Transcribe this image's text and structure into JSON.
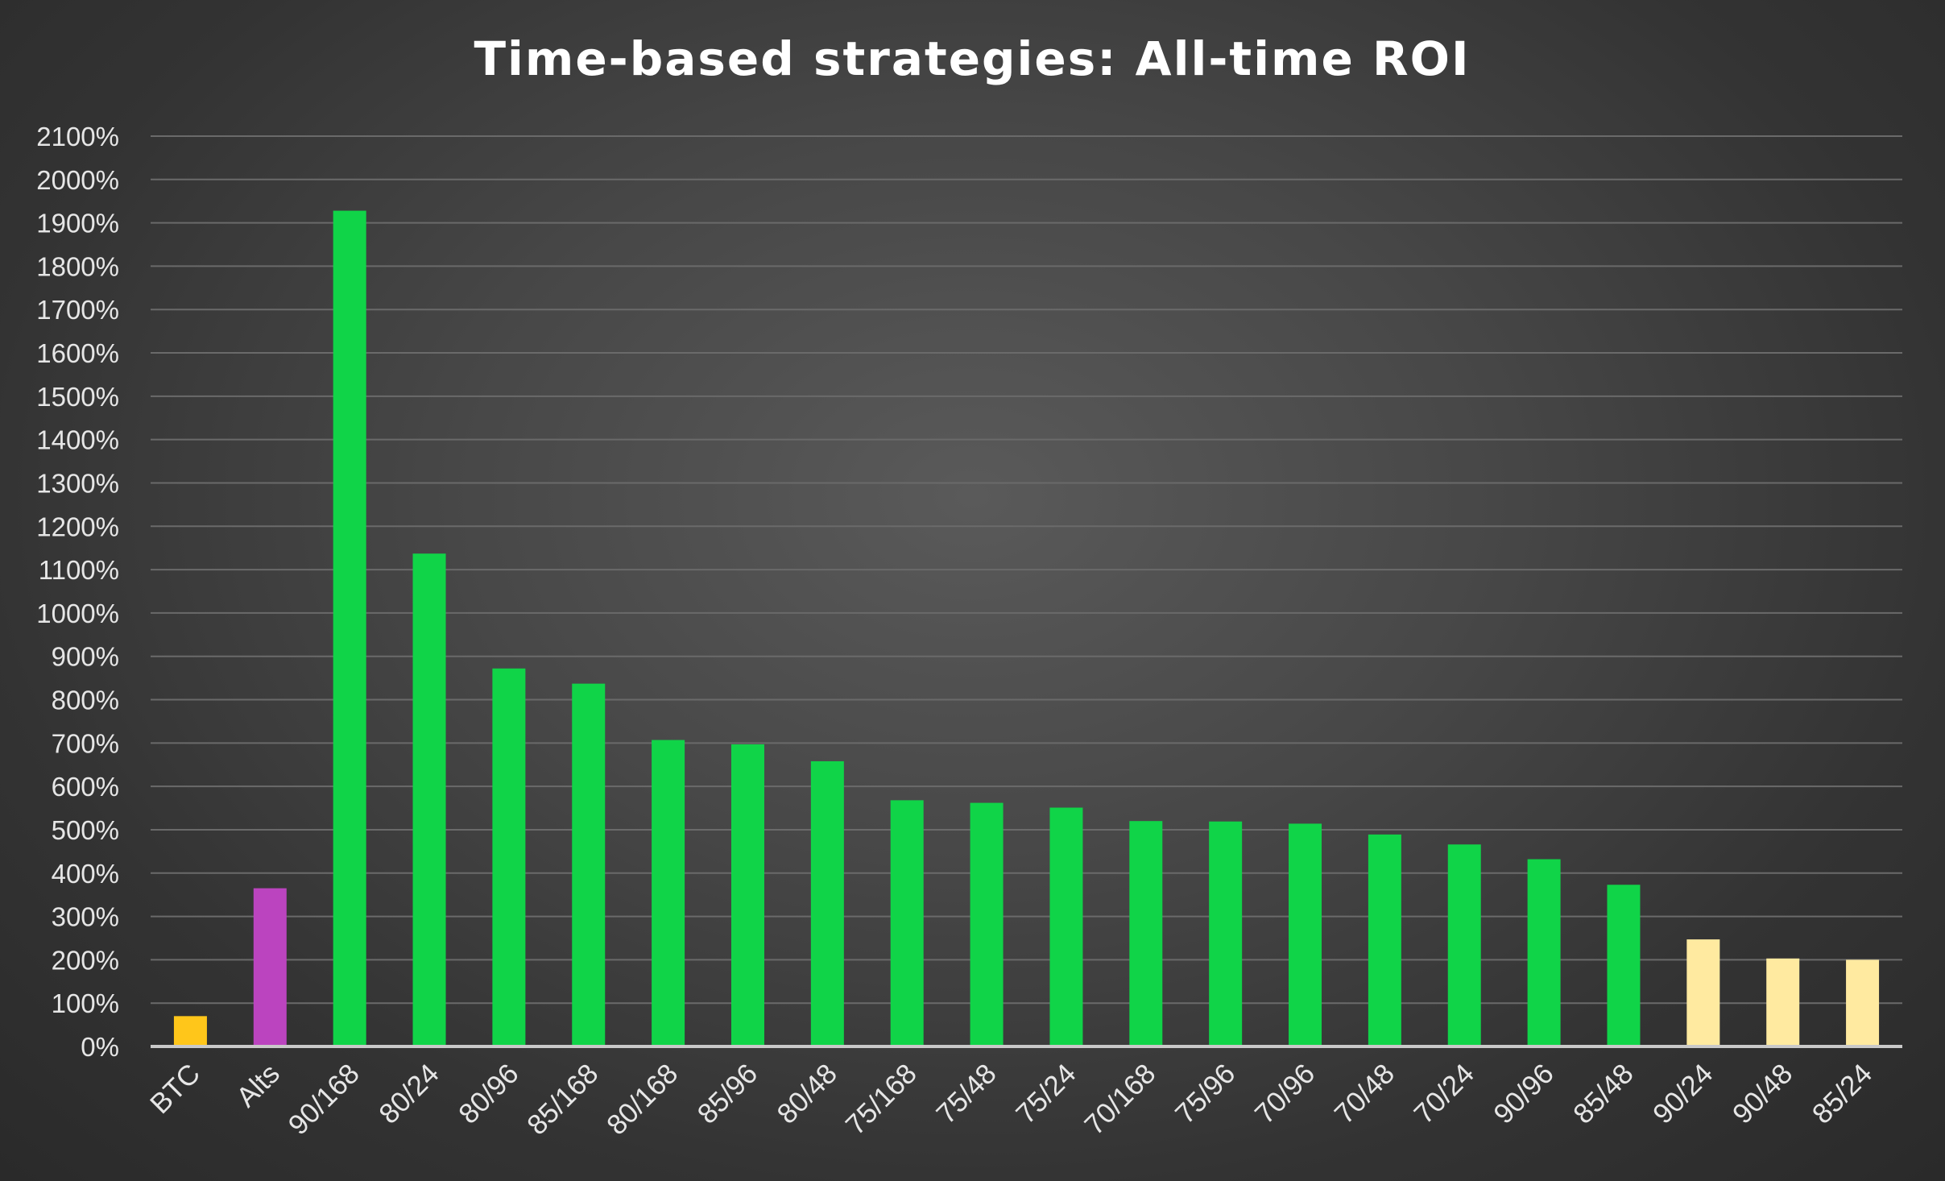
{
  "chart_data": {
    "type": "bar",
    "title": "Time-based strategies: All-time ROI",
    "xlabel": "",
    "ylabel": "",
    "ylim": [
      0,
      2100
    ],
    "yticks": [
      "0%",
      "100%",
      "200%",
      "300%",
      "400%",
      "500%",
      "600%",
      "700%",
      "800%",
      "900%",
      "1000%",
      "1100%",
      "1200%",
      "1300%",
      "1400%",
      "1500%",
      "1600%",
      "1700%",
      "1800%",
      "1900%",
      "2000%",
      "2100%"
    ],
    "grid": true,
    "legend": "none",
    "categories": [
      "BTC",
      "Alts",
      "90/168",
      "80/24",
      "80/96",
      "85/168",
      "80/168",
      "85/96",
      "80/48",
      "75/168",
      "75/48",
      "75/24",
      "70/168",
      "75/96",
      "70/96",
      "70/48",
      "70/24",
      "90/96",
      "85/48",
      "90/24",
      "90/48",
      "85/24"
    ],
    "values": [
      70,
      365,
      1928,
      1137,
      872,
      837,
      707,
      697,
      658,
      568,
      562,
      551,
      520,
      519,
      514,
      489,
      466,
      432,
      373,
      247,
      203,
      200
    ],
    "colors": [
      "#ffc61a",
      "#bb44bf",
      "#10d448",
      "#10d448",
      "#10d448",
      "#10d448",
      "#10d448",
      "#10d448",
      "#10d448",
      "#10d448",
      "#10d448",
      "#10d448",
      "#10d448",
      "#10d448",
      "#10d448",
      "#10d448",
      "#10d448",
      "#10d448",
      "#10d448",
      "#ffeaa0",
      "#ffeaa0",
      "#ffeaa0"
    ]
  }
}
